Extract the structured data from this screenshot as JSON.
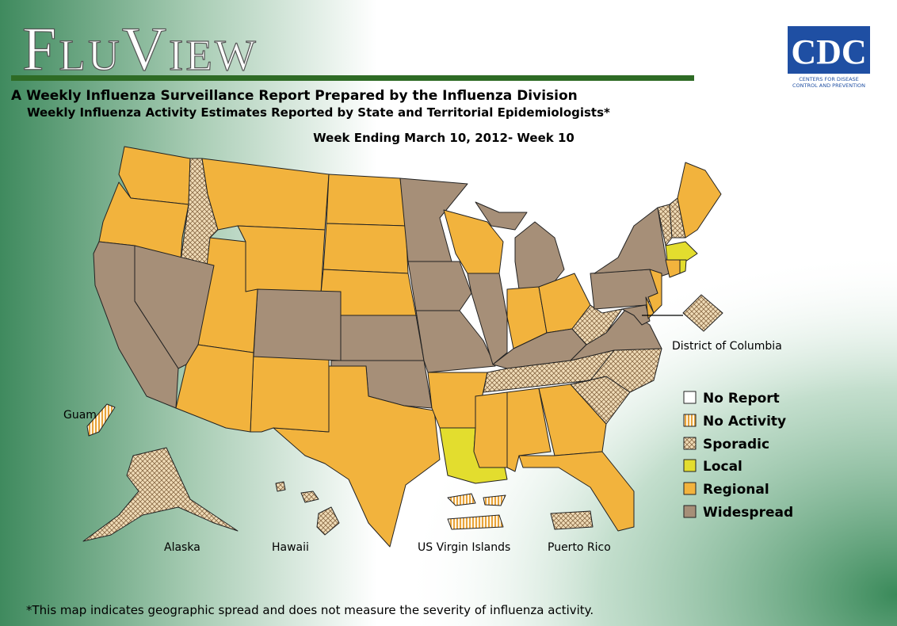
{
  "header": {
    "title": "FluView",
    "subtitle": "A Weekly Influenza Surveillance Report Prepared by the Influenza Division",
    "subtitle2": "Weekly Influenza Activity Estimates Reported by State and Territorial Epidemiologists*",
    "week": "Week Ending March 10, 2012- Week 10"
  },
  "logo": {
    "text": "CDC",
    "tagline": [
      "Centers for Disease",
      "Control and Prevention"
    ]
  },
  "legend": {
    "items": [
      "No Report",
      "No Activity",
      "Sporadic",
      "Local",
      "Regional",
      "Widespread"
    ]
  },
  "labels": {
    "dc": "District of Columbia",
    "guam": "Guam",
    "alaska": "Alaska",
    "hawaii": "Hawaii",
    "usvi": "US Virgin Islands",
    "pr": "Puerto Rico"
  },
  "footnote": "*This map indicates geographic spread and does not measure the severity of influenza activity."
}
